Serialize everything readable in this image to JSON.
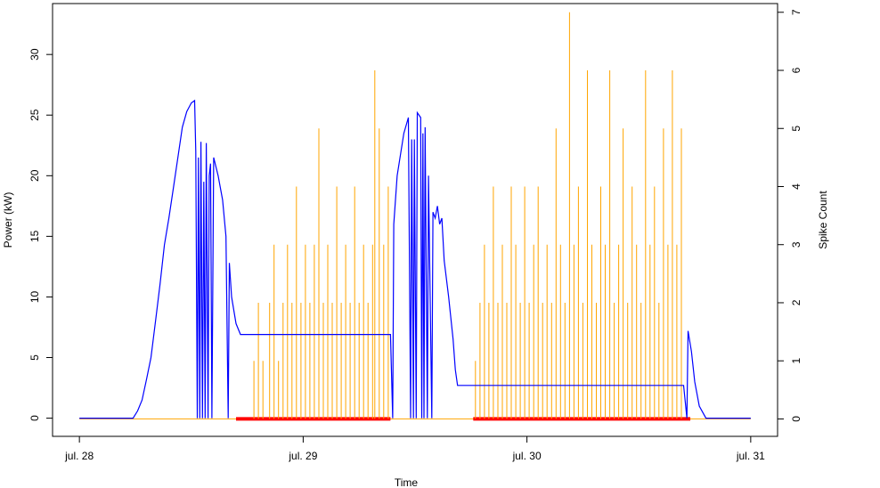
{
  "chart_data": {
    "type": "line",
    "xlabel": "Time",
    "ylabel": "Power (kW)",
    "y2label": "Spike Count",
    "x_ticks": [
      "jul. 28",
      "jul. 29",
      "jul. 30",
      "jul. 31"
    ],
    "xlim_days": [
      -0.12,
      3.12
    ],
    "y_ticks": [
      0,
      5,
      10,
      15,
      20,
      25,
      30
    ],
    "ylim": [
      -1.5,
      34.2
    ],
    "y2_ticks": [
      0,
      1,
      2,
      3,
      4,
      5,
      6,
      7
    ],
    "y2lim": [
      -0.3,
      7.15
    ],
    "grid": false,
    "legend": "none",
    "colors": {
      "power": "#0000ff",
      "spikes": "#ffa500",
      "zero_spikes": "#ff0000",
      "axis": "#000000"
    },
    "series": [
      {
        "axis": "left",
        "color": "#0000ff",
        "note": "x in days after jul. 28 00:00, y in kW",
        "points": [
          [
            0.0,
            0
          ],
          [
            0.24,
            0
          ],
          [
            0.26,
            0.6
          ],
          [
            0.28,
            1.5
          ],
          [
            0.3,
            3.2
          ],
          [
            0.32,
            5
          ],
          [
            0.34,
            8
          ],
          [
            0.36,
            11
          ],
          [
            0.38,
            14.3
          ],
          [
            0.4,
            16.5
          ],
          [
            0.42,
            19
          ],
          [
            0.44,
            21.5
          ],
          [
            0.46,
            24
          ],
          [
            0.48,
            25.3
          ],
          [
            0.5,
            26
          ],
          [
            0.515,
            26.2
          ],
          [
            0.52,
            22
          ],
          [
            0.527,
            0
          ],
          [
            0.532,
            21.5
          ],
          [
            0.538,
            0
          ],
          [
            0.543,
            22.8
          ],
          [
            0.55,
            0
          ],
          [
            0.556,
            19.5
          ],
          [
            0.562,
            0
          ],
          [
            0.567,
            22.7
          ],
          [
            0.575,
            0
          ],
          [
            0.58,
            20
          ],
          [
            0.586,
            21
          ],
          [
            0.592,
            0
          ],
          [
            0.6,
            21.5
          ],
          [
            0.62,
            20
          ],
          [
            0.64,
            18
          ],
          [
            0.655,
            15
          ],
          [
            0.665,
            0
          ],
          [
            0.67,
            12.8
          ],
          [
            0.68,
            10
          ],
          [
            0.7,
            7.8
          ],
          [
            0.72,
            6.9
          ],
          [
            1.39,
            6.9
          ],
          [
            1.4,
            0
          ],
          [
            1.405,
            16
          ],
          [
            1.42,
            20
          ],
          [
            1.45,
            23.5
          ],
          [
            1.47,
            24.8
          ],
          [
            1.48,
            0
          ],
          [
            1.485,
            23
          ],
          [
            1.493,
            0
          ],
          [
            1.497,
            23
          ],
          [
            1.505,
            0
          ],
          [
            1.51,
            25.2
          ],
          [
            1.525,
            24.8
          ],
          [
            1.53,
            0
          ],
          [
            1.535,
            23.5
          ],
          [
            1.54,
            0
          ],
          [
            1.545,
            24
          ],
          [
            1.555,
            0
          ],
          [
            1.56,
            20
          ],
          [
            1.575,
            0
          ],
          [
            1.58,
            17
          ],
          [
            1.59,
            16.5
          ],
          [
            1.6,
            17.5
          ],
          [
            1.61,
            16
          ],
          [
            1.62,
            16.5
          ],
          [
            1.63,
            13
          ],
          [
            1.65,
            10
          ],
          [
            1.67,
            6.5
          ],
          [
            1.68,
            4
          ],
          [
            1.69,
            2.7
          ],
          [
            2.7,
            2.7
          ],
          [
            2.715,
            0
          ],
          [
            2.72,
            7.2
          ],
          [
            2.735,
            5.5
          ],
          [
            2.75,
            3
          ],
          [
            2.77,
            1
          ],
          [
            2.8,
            0
          ],
          [
            3.0,
            0
          ]
        ]
      },
      {
        "axis": "right",
        "color": "#ffa500",
        "note": "x in days after jul. 28 00:00, spike count",
        "points": [
          [
            0.78,
            1
          ],
          [
            0.8,
            2
          ],
          [
            0.82,
            1
          ],
          [
            0.85,
            2
          ],
          [
            0.87,
            3
          ],
          [
            0.89,
            1
          ],
          [
            0.91,
            2
          ],
          [
            0.93,
            3
          ],
          [
            0.95,
            2
          ],
          [
            0.97,
            4
          ],
          [
            0.99,
            2
          ],
          [
            1.01,
            3
          ],
          [
            1.03,
            2
          ],
          [
            1.05,
            3
          ],
          [
            1.07,
            5
          ],
          [
            1.09,
            2
          ],
          [
            1.11,
            3
          ],
          [
            1.13,
            2
          ],
          [
            1.15,
            4
          ],
          [
            1.17,
            2
          ],
          [
            1.19,
            3
          ],
          [
            1.21,
            2
          ],
          [
            1.23,
            4
          ],
          [
            1.25,
            2
          ],
          [
            1.27,
            3
          ],
          [
            1.29,
            2
          ],
          [
            1.31,
            3
          ],
          [
            1.32,
            6
          ],
          [
            1.34,
            5
          ],
          [
            1.36,
            3
          ],
          [
            1.38,
            4
          ],
          [
            1.77,
            1
          ],
          [
            1.79,
            2
          ],
          [
            1.81,
            3
          ],
          [
            1.83,
            2
          ],
          [
            1.85,
            4
          ],
          [
            1.87,
            2
          ],
          [
            1.89,
            3
          ],
          [
            1.91,
            2
          ],
          [
            1.93,
            4
          ],
          [
            1.95,
            3
          ],
          [
            1.97,
            2
          ],
          [
            1.99,
            4
          ],
          [
            2.01,
            2
          ],
          [
            2.03,
            3
          ],
          [
            2.05,
            4
          ],
          [
            2.07,
            2
          ],
          [
            2.09,
            3
          ],
          [
            2.11,
            2
          ],
          [
            2.13,
            5
          ],
          [
            2.15,
            3
          ],
          [
            2.17,
            2
          ],
          [
            2.19,
            7
          ],
          [
            2.21,
            3
          ],
          [
            2.23,
            4
          ],
          [
            2.25,
            2
          ],
          [
            2.27,
            6
          ],
          [
            2.29,
            3
          ],
          [
            2.31,
            2
          ],
          [
            2.33,
            4
          ],
          [
            2.35,
            3
          ],
          [
            2.37,
            6
          ],
          [
            2.39,
            2
          ],
          [
            2.41,
            3
          ],
          [
            2.43,
            5
          ],
          [
            2.45,
            2
          ],
          [
            2.47,
            4
          ],
          [
            2.49,
            3
          ],
          [
            2.51,
            2
          ],
          [
            2.53,
            6
          ],
          [
            2.55,
            3
          ],
          [
            2.57,
            4
          ],
          [
            2.59,
            2
          ],
          [
            2.61,
            5
          ],
          [
            2.63,
            3
          ],
          [
            2.65,
            6
          ],
          [
            2.67,
            3
          ],
          [
            2.69,
            5
          ]
        ]
      }
    ],
    "zero_bands": [
      [
        0.7,
        1.39
      ],
      [
        1.76,
        2.73
      ]
    ]
  }
}
